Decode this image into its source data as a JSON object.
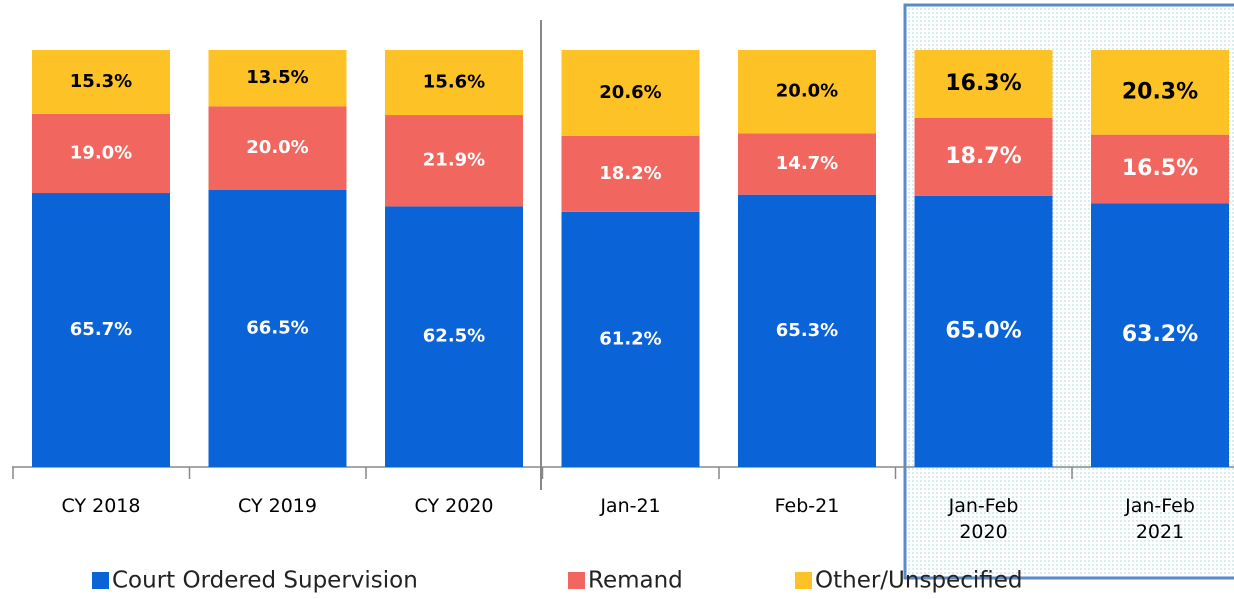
{
  "chart_data": {
    "type": "stacked_bar",
    "categories": [
      "CY 2018",
      "CY 2019",
      "CY 2020",
      "Jan-21",
      "Feb-21",
      "Jan-Feb 2020",
      "Jan-Feb 2021"
    ],
    "series": [
      {
        "name": "Court Ordered Supervision",
        "color": "#0b63d8",
        "values": [
          65.7,
          66.5,
          62.5,
          61.2,
          65.3,
          65.0,
          63.2
        ],
        "value_labels": [
          "65.7%",
          "66.5%",
          "62.5%",
          "61.2%",
          "65.3%",
          "65.0%",
          "63.2%"
        ]
      },
      {
        "name": "Remand",
        "color": "#f1665e",
        "values": [
          19.0,
          20.0,
          21.9,
          18.2,
          14.7,
          18.7,
          16.5
        ],
        "value_labels": [
          "19.0%",
          "20.0%",
          "21.9%",
          "18.2%",
          "14.7%",
          "18.7%",
          "16.5%"
        ]
      },
      {
        "name": "Other/Unspecified",
        "color": "#fdc326",
        "values": [
          15.3,
          13.5,
          15.6,
          20.6,
          20.0,
          16.3,
          20.3
        ],
        "value_labels": [
          "15.3%",
          "13.5%",
          "15.6%",
          "20.6%",
          "20.0%",
          "16.3%",
          "20.3%"
        ]
      }
    ],
    "ylim": [
      0,
      100
    ],
    "legend": "bottom"
  }
}
